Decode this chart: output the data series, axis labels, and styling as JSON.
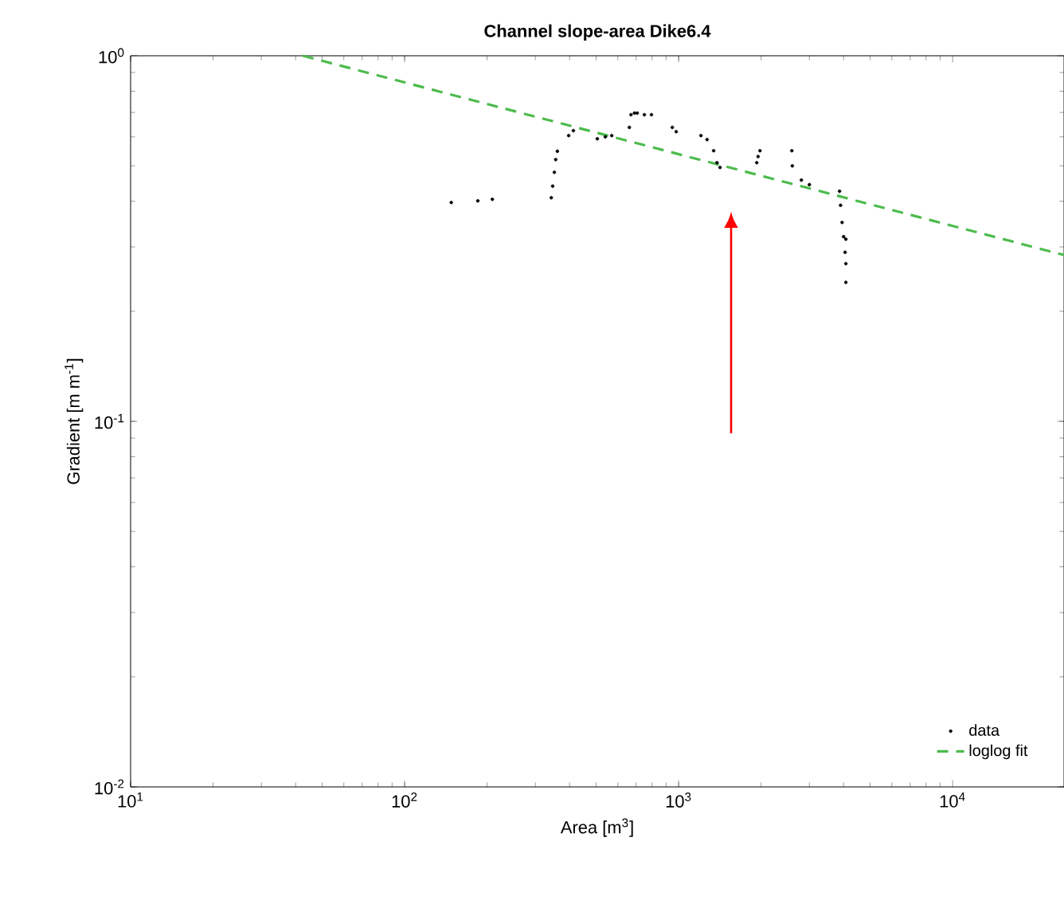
{
  "chart_data": {
    "type": "scatter",
    "title": "**Channel slope-area Dike6.4**",
    "xlabel": "Area [m$^{3}$]",
    "ylabel": "Gradient [m m$^{-1}$]",
    "log": "xy",
    "xlim": [
      10,
      25500
    ],
    "ylim": [
      0.01,
      1
    ],
    "xticks": [
      {
        "value": 10,
        "label": "10$^{1}$"
      },
      {
        "value": 100,
        "label": "10$^{2}$"
      },
      {
        "value": 1000,
        "label": "10$^{3}$"
      },
      {
        "value": 10000,
        "label": "10$^{4}$"
      }
    ],
    "yticks": [
      {
        "value": 0.01,
        "label": "10$^{-2}$"
      },
      {
        "value": 0.1,
        "label": "10$^{-1}$"
      },
      {
        "value": 1,
        "label": "10$^{0}$"
      }
    ],
    "grid": false,
    "legend": "bottom right",
    "series": [
      {
        "name": "data",
        "marker": "circle",
        "color": "#000000",
        "x": [
          148,
          185,
          209,
          343,
          347,
          352,
          356,
          361,
          397,
          413,
          505,
          540,
          570,
          661,
          670,
          690,
          706,
          750,
          796,
          948,
          980,
          1206,
          1270,
          1342,
          1380,
          1416,
          1928,
          1950,
          1981,
          2589,
          2600,
          2805,
          3000,
          3866,
          3900,
          3950,
          4000,
          4050,
          4077,
          4077,
          4077
        ],
        "values": [
          0.397,
          0.401,
          0.405,
          0.409,
          0.44,
          0.48,
          0.52,
          0.548,
          0.605,
          0.624,
          0.593,
          0.6,
          0.605,
          0.637,
          0.69,
          0.697,
          0.697,
          0.69,
          0.69,
          0.637,
          0.62,
          0.605,
          0.59,
          0.55,
          0.51,
          0.495,
          0.51,
          0.53,
          0.55,
          0.55,
          0.5,
          0.457,
          0.444,
          0.426,
          0.39,
          0.35,
          0.32,
          0.29,
          0.315,
          0.27,
          0.24
        ]
      },
      {
        "name": "loglog fit",
        "type": "line",
        "line_style": "dashed",
        "marker": "none",
        "color": "#4dbb4d",
        "x": [
          42.5,
          25500
        ],
        "values": [
          1.0,
          0.285
        ]
      }
    ]
  }
}
